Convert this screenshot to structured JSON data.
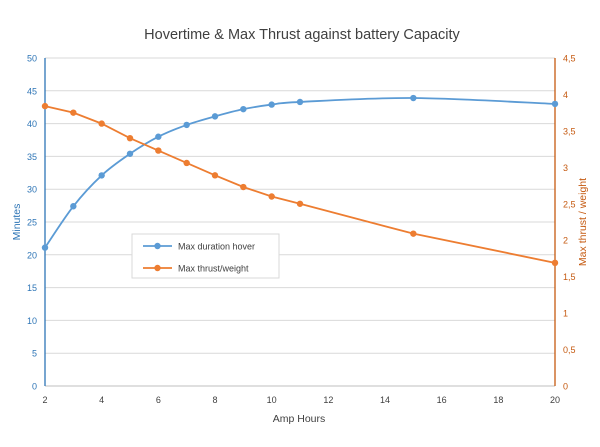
{
  "chart_data": {
    "type": "line",
    "title": "Hovertime & Max Thrust against battery Capacity",
    "xlabel": "Amp Hours",
    "ylabel_left": "Minutes",
    "ylabel_right": "Max thrust / weight",
    "xlim": [
      2,
      20
    ],
    "ylim_left": [
      0,
      50
    ],
    "ylim_right": [
      0,
      4.5
    ],
    "x_ticks": [
      "2",
      "4",
      "6",
      "8",
      "10",
      "12",
      "14",
      "16",
      "18",
      "20"
    ],
    "y_left_ticks": [
      "0",
      "5",
      "10",
      "15",
      "20",
      "25",
      "30",
      "35",
      "40",
      "45",
      "50"
    ],
    "y_right_ticks": [
      "0",
      "0,5",
      "1",
      "1,5",
      "2",
      "2,5",
      "3",
      "3,5",
      "4",
      "4,5"
    ],
    "grid": "horizontal",
    "legend_position": "center-left",
    "series": [
      {
        "name": "Max duration hover",
        "axis": "left",
        "color": "#5b9bd5",
        "x": [
          2,
          3,
          4,
          5,
          6,
          7,
          8,
          9,
          10,
          11,
          15,
          20
        ],
        "values": [
          21.1,
          27.4,
          32.1,
          35.4,
          38.0,
          39.8,
          41.1,
          42.2,
          42.9,
          43.3,
          43.9,
          43.0
        ]
      },
      {
        "name": "Max thrust/weight",
        "axis": "right",
        "color": "#ed7d31",
        "x": [
          2,
          3,
          4,
          5,
          6,
          7,
          8,
          9,
          10,
          11,
          15,
          20
        ],
        "values": [
          3.84,
          3.75,
          3.6,
          3.4,
          3.23,
          3.06,
          2.89,
          2.73,
          2.6,
          2.5,
          2.09,
          1.69
        ]
      }
    ]
  }
}
